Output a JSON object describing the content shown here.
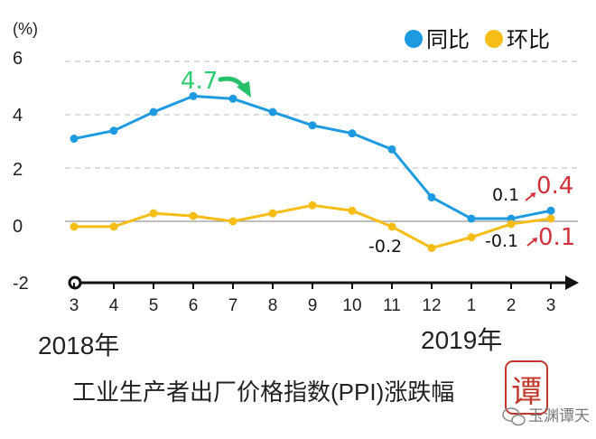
{
  "chart_data": {
    "type": "line",
    "title": "工业生产者出厂价格指数(PPI)涨跌幅",
    "unit_label": "(%)",
    "categories": [
      "3",
      "4",
      "5",
      "6",
      "7",
      "8",
      "9",
      "10",
      "11",
      "12",
      "1",
      "2",
      "3"
    ],
    "year_labels": [
      "2018年",
      "2019年"
    ],
    "ylim": [
      -2,
      6
    ],
    "yticks": [
      "6",
      "4",
      "2",
      "0",
      "-2"
    ],
    "grid": true,
    "legend_position": "top-right",
    "series": [
      {
        "name": "同比",
        "color": "#1e9be0",
        "values": [
          3.1,
          3.4,
          4.1,
          4.7,
          4.6,
          4.1,
          3.6,
          3.3,
          2.7,
          0.9,
          0.1,
          0.1,
          0.4
        ]
      },
      {
        "name": "环比",
        "color": "#f6bd16",
        "values": [
          -0.2,
          -0.2,
          0.3,
          0.2,
          0.0,
          0.3,
          0.6,
          0.4,
          -0.2,
          -1.0,
          -0.6,
          -0.1,
          0.1
        ]
      }
    ],
    "annotations": [
      {
        "text": "4.7",
        "color": "#2ecc71"
      },
      {
        "text": "0.1",
        "color": "#111111"
      },
      {
        "text": "0.4",
        "color": "#d0343a"
      },
      {
        "text": "-0.2",
        "color": "#111111"
      },
      {
        "text": "-0.1",
        "color": "#111111"
      },
      {
        "text": "0.1",
        "color": "#d0343a"
      }
    ]
  },
  "watermark": {
    "seal_text": "谭",
    "account": "玉渊谭天"
  },
  "colors": {
    "grid": "#bbbbbb",
    "zero_line": "#999999",
    "axis": "#111111",
    "arrow_green": "#27c06a",
    "arrow_red": "#d0343a"
  }
}
